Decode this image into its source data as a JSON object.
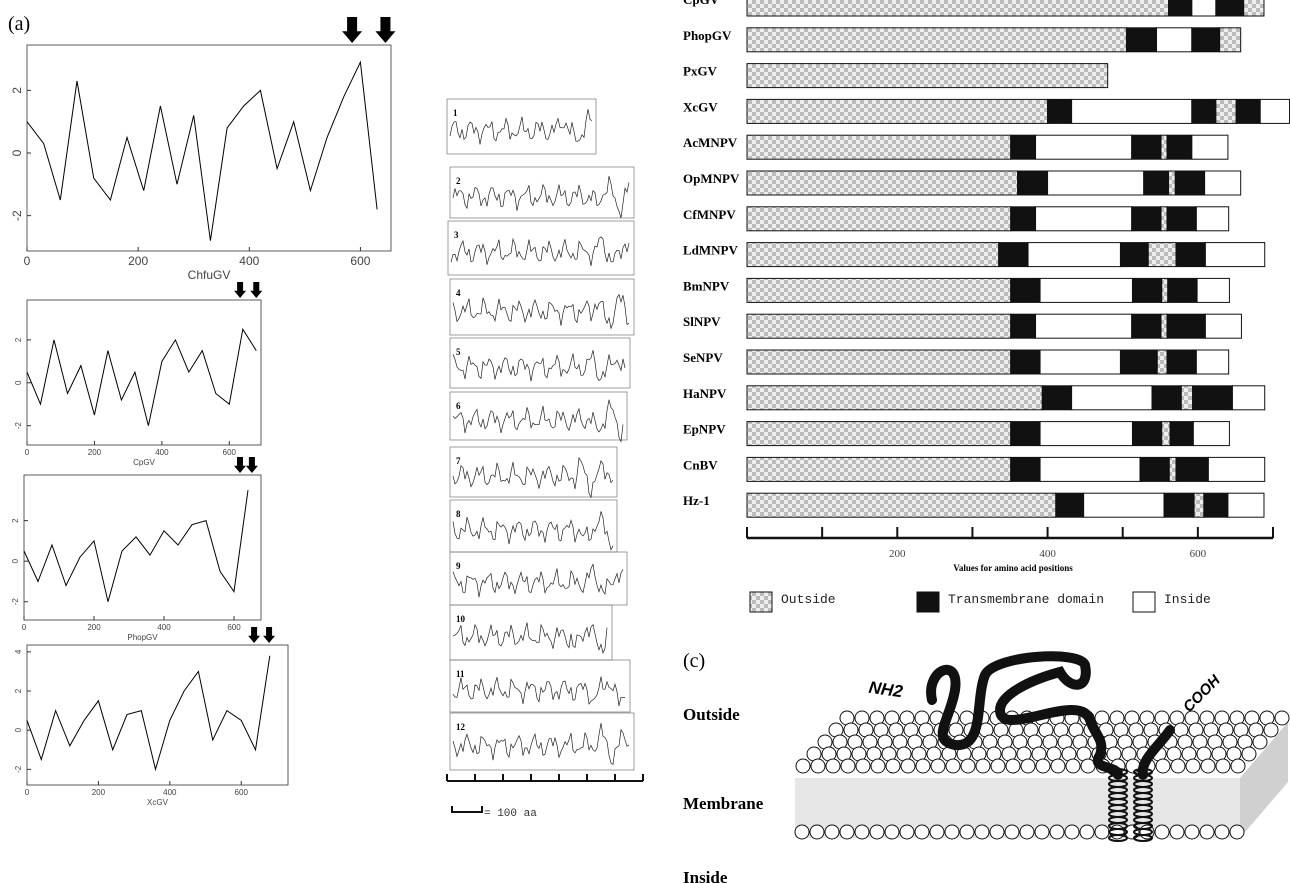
{
  "panel_labels": [
    "(a)",
    "(c)"
  ],
  "chart_data": [
    {
      "type": "line",
      "x_label": "ChfuGV",
      "xlim": [
        0,
        655
      ],
      "ylim": [
        -3.13,
        3.45
      ],
      "xticks": [
        0,
        200,
        400,
        600
      ],
      "yticks": [
        -2,
        0,
        2
      ],
      "x": [
        0,
        30,
        60,
        90,
        120,
        150,
        180,
        210,
        240,
        270,
        300,
        330,
        360,
        390,
        420,
        450,
        480,
        510,
        540,
        570,
        600,
        630
      ],
      "values": [
        1.0,
        0.3,
        -1.5,
        2.3,
        -0.8,
        -1.5,
        0.5,
        -1.2,
        1.5,
        -1.0,
        1.2,
        -2.8,
        0.8,
        1.5,
        2.0,
        -0.5,
        1.0,
        -1.2,
        0.5,
        1.8,
        2.9,
        -1.8
      ],
      "arrows": [
        585,
        645
      ],
      "color": "#000"
    },
    {
      "type": "line",
      "x_label": "CpGV",
      "xlim": [
        0,
        694
      ],
      "ylim": [
        -2.9,
        3.86
      ],
      "xticks": [
        0,
        200,
        400,
        600
      ],
      "yticks": [
        -2,
        0,
        2
      ],
      "x": [
        0,
        40,
        80,
        120,
        160,
        200,
        240,
        280,
        320,
        360,
        400,
        440,
        480,
        520,
        560,
        600,
        640,
        680
      ],
      "values": [
        0.5,
        -1.0,
        2.0,
        -0.5,
        0.8,
        -1.5,
        1.5,
        -0.8,
        0.5,
        -2.0,
        1.0,
        2.0,
        0.5,
        1.5,
        -0.5,
        -1.0,
        2.5,
        1.5
      ],
      "arrows": [
        632,
        680
      ],
      "color": "#000"
    },
    {
      "type": "line",
      "x_label": "PhopGV",
      "xlim": [
        0,
        677
      ],
      "ylim": [
        -2.9,
        4.25
      ],
      "xticks": [
        0,
        200,
        400,
        600
      ],
      "yticks": [
        -2,
        0,
        2
      ],
      "x": [
        0,
        40,
        80,
        120,
        160,
        200,
        240,
        280,
        320,
        360,
        400,
        440,
        480,
        520,
        560,
        600,
        640
      ],
      "values": [
        0.5,
        -1.0,
        0.8,
        -1.2,
        0.2,
        1.0,
        -2.0,
        0.5,
        1.2,
        0.3,
        1.5,
        0.8,
        1.8,
        2.0,
        -0.5,
        -1.5,
        3.5
      ],
      "arrows": [
        617,
        651
      ],
      "color": "#000"
    },
    {
      "type": "line",
      "x_label": "XcGV",
      "xlim": [
        0,
        731
      ],
      "ylim": [
        -2.8,
        4.35
      ],
      "xticks": [
        0,
        200,
        400,
        600
      ],
      "yticks": [
        -2,
        0,
        2,
        4
      ],
      "x": [
        0,
        40,
        80,
        120,
        160,
        200,
        240,
        280,
        320,
        360,
        400,
        440,
        480,
        520,
        560,
        600,
        640,
        680
      ],
      "values": [
        0.5,
        -1.5,
        1.0,
        -0.8,
        0.5,
        1.5,
        -1.0,
        0.8,
        1.0,
        -2.0,
        0.5,
        2.0,
        3.0,
        -0.5,
        1.0,
        0.5,
        -1.0,
        3.8
      ],
      "arrows": [
        636,
        678
      ],
      "color": "#000"
    },
    {
      "type": "segmented_bar",
      "x_label": "Values for amino acid positions",
      "xlim": [
        0,
        700
      ],
      "xticks": [
        200,
        400,
        600
      ],
      "minor_xticks": [
        0,
        100,
        300,
        500,
        700
      ],
      "legend": [
        {
          "label": "Outside",
          "fill": "checker"
        },
        {
          "label": "Transmembrane domain",
          "fill": "#111"
        },
        {
          "label": "Inside",
          "fill": "#fff"
        }
      ],
      "categories": [
        "CpGV",
        "PhopGV",
        "PxGV",
        "XcGV",
        "AcMNPV",
        "OpMNPV",
        "CfMNPV",
        "LdMNPV",
        "BmNPV",
        "SlNPV",
        "SeNPV",
        "HaNPV",
        "EpNPV",
        "CnBV",
        "Hz-1"
      ],
      "rows": [
        {
          "kinds": [
            0,
            1,
            2,
            1,
            0
          ],
          "lengths": [
            561,
            31,
            32,
            37,
            27
          ]
        },
        {
          "kinds": [
            0,
            1,
            2,
            1,
            0
          ],
          "lengths": [
            505,
            40,
            47,
            37,
            28
          ]
        },
        {
          "kinds": [
            0
          ],
          "lengths": [
            480
          ]
        },
        {
          "kinds": [
            0,
            1,
            2,
            1,
            0,
            1,
            2
          ],
          "lengths": [
            400,
            32,
            160,
            32,
            27,
            32,
            39
          ]
        },
        {
          "kinds": [
            0,
            1,
            2,
            1,
            0,
            1,
            2
          ],
          "lengths": [
            351,
            33,
            128,
            39,
            8,
            33,
            48
          ]
        },
        {
          "kinds": [
            0,
            1,
            2,
            1,
            0,
            1,
            2
          ],
          "lengths": [
            360,
            40,
            128,
            33,
            9,
            39,
            48
          ]
        },
        {
          "kinds": [
            0,
            1,
            2,
            1,
            0,
            1,
            2
          ],
          "lengths": [
            351,
            33,
            128,
            39,
            8,
            39,
            43
          ]
        },
        {
          "kinds": [
            0,
            1,
            2,
            1,
            0,
            1,
            2
          ],
          "lengths": [
            335,
            39,
            123,
            37,
            37,
            39,
            79
          ]
        },
        {
          "kinds": [
            0,
            1,
            2,
            1,
            0,
            1,
            2
          ],
          "lengths": [
            351,
            39,
            123,
            39,
            8,
            39,
            43
          ]
        },
        {
          "kinds": [
            0,
            1,
            2,
            1,
            0,
            1,
            2
          ],
          "lengths": [
            351,
            33,
            128,
            39,
            8,
            51,
            48
          ]
        },
        {
          "kinds": [
            0,
            1,
            2,
            1,
            0,
            1,
            2
          ],
          "lengths": [
            351,
            39,
            107,
            49,
            13,
            39,
            43
          ]
        },
        {
          "kinds": [
            0,
            1,
            2,
            1,
            0,
            1,
            2
          ],
          "lengths": [
            393,
            39,
            107,
            39,
            15,
            53,
            43
          ]
        },
        {
          "kinds": [
            0,
            1,
            2,
            1,
            0,
            1,
            2
          ],
          "lengths": [
            351,
            39,
            123,
            39,
            11,
            31,
            48
          ]
        },
        {
          "kinds": [
            0,
            1,
            2,
            1,
            0,
            1,
            2
          ],
          "lengths": [
            351,
            39,
            133,
            39,
            9,
            43,
            75
          ]
        },
        {
          "kinds": [
            0,
            1,
            2,
            1,
            0,
            1,
            2
          ],
          "lengths": [
            411,
            37,
            107,
            40,
            13,
            32,
            48
          ]
        }
      ]
    }
  ],
  "mini_plots": {
    "labels": [
      "1",
      "2",
      "3",
      "4",
      "5",
      "6",
      "7",
      "8",
      "9",
      "10",
      "11",
      "12"
    ],
    "scale_label": "= 100 aa"
  },
  "membrane": {
    "outside": "Outside",
    "membrane": "Membrane",
    "inside": "Inside",
    "n_term": "NH2",
    "c_term": "COOH"
  }
}
